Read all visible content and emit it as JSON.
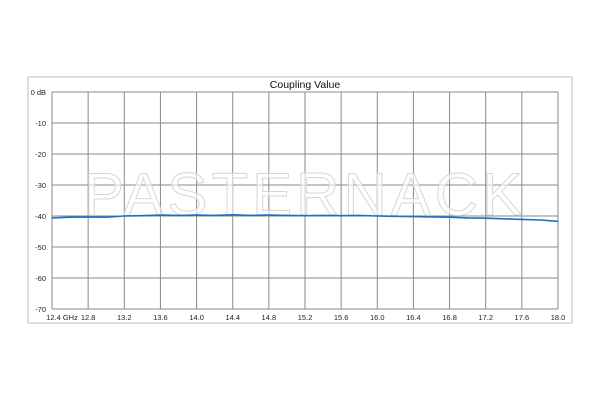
{
  "watermark": "PASTERNACK",
  "chart_data": {
    "type": "line",
    "title": "Coupling Value",
    "xlabel": "",
    "ylabel": "",
    "xlim": [
      12.4,
      18.0
    ],
    "ylim": [
      -70,
      0
    ],
    "grid": true,
    "x_tick_labels": [
      "12.4 GHz",
      "12.8",
      "13.2",
      "13.6",
      "14.0",
      "14.4",
      "14.8",
      "15.2",
      "15.6",
      "16.0",
      "16.4",
      "16.8",
      "17.2",
      "17.6",
      "18.0"
    ],
    "x_ticks": [
      12.4,
      12.8,
      13.2,
      13.6,
      14.0,
      14.4,
      14.8,
      15.2,
      15.6,
      16.0,
      16.4,
      16.8,
      17.2,
      17.6,
      18.0
    ],
    "y_tick_labels": [
      "0 dB",
      "-10",
      "-20",
      "-30",
      "-40",
      "-50",
      "-60",
      "-70"
    ],
    "y_ticks": [
      0,
      -10,
      -20,
      -30,
      -40,
      -50,
      -60,
      -70
    ],
    "line_color": "#1f6fc0",
    "series": [
      {
        "x": [
          12.4,
          12.6,
          12.8,
          13.0,
          13.2,
          13.4,
          13.6,
          13.8,
          14.0,
          14.2,
          14.4,
          14.6,
          14.8,
          15.0,
          15.2,
          15.4,
          15.6,
          15.8,
          16.0,
          16.2,
          16.4,
          16.6,
          16.8,
          17.0,
          17.2,
          17.4,
          17.6,
          17.8,
          18.0
        ],
        "y": [
          -40.6,
          -40.4,
          -40.3,
          -40.4,
          -40.0,
          -39.9,
          -39.7,
          -39.8,
          -39.7,
          -39.8,
          -39.6,
          -39.8,
          -39.7,
          -39.8,
          -39.9,
          -39.8,
          -39.9,
          -39.8,
          -40.0,
          -40.1,
          -40.2,
          -40.3,
          -40.4,
          -40.6,
          -40.7,
          -40.9,
          -41.1,
          -41.3,
          -41.7
        ]
      }
    ]
  }
}
